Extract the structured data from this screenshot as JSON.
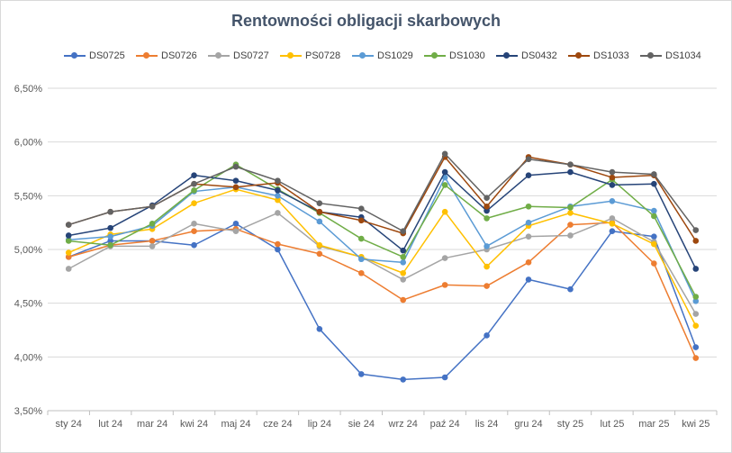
{
  "chart_data": {
    "type": "line",
    "title": "Rentowności  obligacji  skarbowych",
    "xlabel": "",
    "ylabel": "",
    "categories": [
      "sty 24",
      "lut 24",
      "mar 24",
      "kwi 24",
      "maj 24",
      "cze 24",
      "lip 24",
      "sie 24",
      "wrz 24",
      "paź 24",
      "lis 24",
      "gru 24",
      "sty 25",
      "lut 25",
      "mar 25",
      "kwi 25"
    ],
    "ylim": [
      0.035,
      0.065
    ],
    "yticks": [
      0.035,
      0.04,
      0.045,
      0.05,
      0.055,
      0.06,
      0.065
    ],
    "ytick_labels": [
      "3,50%",
      "4,00%",
      "4,50%",
      "5,00%",
      "5,50%",
      "6,00%",
      "6,50%"
    ],
    "grid": true,
    "legend_position": "top",
    "series": [
      {
        "name": "DS0725",
        "color": "#4472c4",
        "values": [
          0.0493,
          0.0508,
          0.0508,
          0.0504,
          0.0524,
          0.05,
          0.0426,
          0.0384,
          0.0379,
          0.0381,
          0.042,
          0.0472,
          0.0463,
          0.0517,
          0.0512,
          0.0409
        ]
      },
      {
        "name": "DS0726",
        "color": "#ed7d31",
        "values": [
          0.0493,
          0.0504,
          0.0508,
          0.0517,
          0.0519,
          0.0505,
          0.0496,
          0.0478,
          0.0453,
          0.0467,
          0.0466,
          0.0488,
          0.0523,
          0.0525,
          0.0487,
          0.0399
        ]
      },
      {
        "name": "DS0727",
        "color": "#a5a5a5",
        "values": [
          0.0482,
          0.0503,
          0.0503,
          0.0524,
          0.0517,
          0.0534,
          0.0503,
          0.0493,
          0.0472,
          0.0492,
          0.05,
          0.0512,
          0.0513,
          0.0529,
          0.0507,
          0.044
        ]
      },
      {
        "name": "PS0728",
        "color": "#ffc000",
        "values": [
          0.0497,
          0.0514,
          0.0519,
          0.0543,
          0.0556,
          0.0546,
          0.0504,
          0.0493,
          0.0478,
          0.0535,
          0.0484,
          0.0522,
          0.0534,
          0.0524,
          0.0505,
          0.0429
        ]
      },
      {
        "name": "DS1029",
        "color": "#5b9bd5",
        "values": [
          0.0509,
          0.0512,
          0.0522,
          0.0554,
          0.0558,
          0.055,
          0.0526,
          0.0491,
          0.0488,
          0.0567,
          0.0503,
          0.0525,
          0.054,
          0.0545,
          0.0536,
          0.0452
        ]
      },
      {
        "name": "DS1030",
        "color": "#70ad47",
        "values": [
          0.0508,
          0.0504,
          0.0524,
          0.0555,
          0.0579,
          0.0556,
          0.0534,
          0.051,
          0.0493,
          0.056,
          0.0529,
          0.054,
          0.0539,
          0.0565,
          0.0531,
          0.0456
        ]
      },
      {
        "name": "DS0432",
        "color": "#264478",
        "values": [
          0.0513,
          0.052,
          0.0541,
          0.0569,
          0.0564,
          0.0555,
          0.0535,
          0.053,
          0.0499,
          0.0572,
          0.0536,
          0.0569,
          0.0572,
          0.056,
          0.0561,
          0.0482
        ]
      },
      {
        "name": "DS1033",
        "color": "#9e480e",
        "values": [
          0.0523,
          0.0535,
          0.054,
          0.0561,
          0.0558,
          0.0562,
          0.0535,
          0.0527,
          0.0515,
          0.0586,
          0.054,
          0.0586,
          0.0579,
          0.0567,
          0.0569,
          0.0508
        ]
      },
      {
        "name": "DS1034",
        "color": "#636363",
        "values": [
          0.0523,
          0.0535,
          0.054,
          0.0561,
          0.0577,
          0.0564,
          0.0543,
          0.0538,
          0.0517,
          0.0589,
          0.0548,
          0.0584,
          0.0579,
          0.0572,
          0.057,
          0.0518
        ]
      }
    ]
  }
}
